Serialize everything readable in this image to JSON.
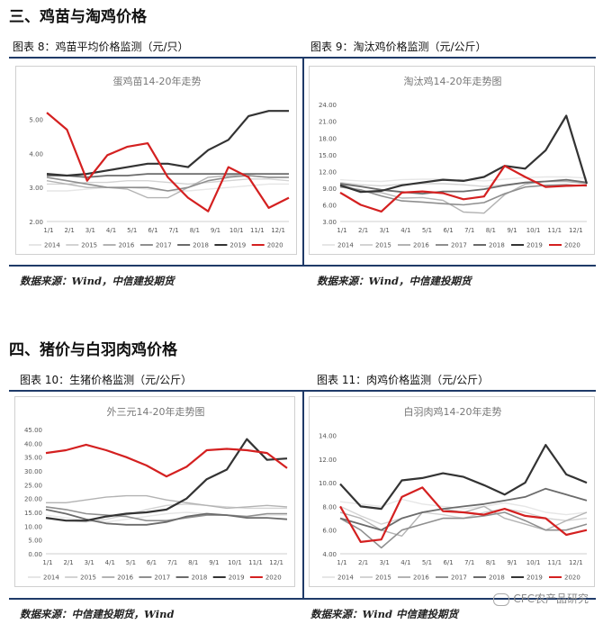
{
  "sections": {
    "s3": "三、鸡苗与淘鸡价格",
    "s4": "四、猪价与白羽肉鸡价格"
  },
  "figures": {
    "f8": {
      "label": "图表 8：鸡苗平均价格监测（元/只）",
      "source": "数据来源：Wind，中信建投期货"
    },
    "f9": {
      "label": "图表 9：淘汰鸡价格监测（元/公斤）",
      "source": "数据来源：Wind，中信建投期货"
    },
    "f10": {
      "label": "图表 10：生猪价格监测（元/公斤）",
      "source": "数据来源：中信建投期货，Wind"
    },
    "f11": {
      "label": "图表 11：肉鸡价格监测（元/公斤）",
      "source": "数据来源：Wind 中信建投期货"
    }
  },
  "watermark": "CFC农产品研究",
  "legend_names": [
    "2014",
    "2015",
    "2016",
    "2017",
    "2018",
    "2019",
    "2020"
  ],
  "series_colors": [
    "#e6e6e6",
    "#d3d3d3",
    "#b3b3b3",
    "#8f8f8f",
    "#6b6b6b",
    "#333333",
    "#d42020"
  ],
  "chart_data": [
    {
      "type": "line",
      "title": "蛋鸡苗14-20年走势",
      "x_ticks": [
        "1/1",
        "2/1",
        "3/1",
        "4/1",
        "5/1",
        "6/1",
        "7/1",
        "8/1",
        "9/1",
        "10/1",
        "11/1",
        "12/1"
      ],
      "y_ticks": [
        "2.00",
        "3.00",
        "4.00",
        "5.00"
      ],
      "ylim": [
        2,
        5.6
      ],
      "grid": false,
      "legend_position": "bottom",
      "series": [
        {
          "name": "2014",
          "values": [
            2.9,
            2.9,
            2.95,
            3.0,
            3.0,
            2.95,
            2.9,
            2.9,
            2.95,
            3.0,
            3.05,
            3.1,
            3.1
          ]
        },
        {
          "name": "2015",
          "values": [
            3.1,
            3.1,
            3.15,
            3.15,
            3.2,
            3.2,
            3.15,
            3.1,
            3.15,
            3.2,
            3.25,
            3.25,
            3.2
          ]
        },
        {
          "name": "2016",
          "values": [
            3.2,
            3.1,
            3.0,
            3.0,
            2.95,
            2.7,
            2.7,
            3.0,
            3.3,
            3.35,
            3.35,
            3.3,
            3.3
          ]
        },
        {
          "name": "2017",
          "values": [
            3.3,
            3.2,
            3.1,
            3.0,
            3.0,
            3.0,
            2.9,
            3.0,
            3.2,
            3.3,
            3.35,
            3.3,
            3.3
          ]
        },
        {
          "name": "2018",
          "values": [
            3.35,
            3.35,
            3.3,
            3.35,
            3.35,
            3.4,
            3.4,
            3.4,
            3.4,
            3.4,
            3.4,
            3.4,
            3.4
          ]
        },
        {
          "name": "2019",
          "values": [
            3.4,
            3.35,
            3.4,
            3.5,
            3.6,
            3.7,
            3.7,
            3.6,
            4.1,
            4.4,
            5.1,
            5.25,
            5.25
          ]
        },
        {
          "name": "2020",
          "values": [
            5.2,
            4.7,
            3.2,
            3.95,
            4.2,
            4.3,
            3.3,
            2.7,
            2.3,
            3.6,
            3.3,
            2.4,
            2.7
          ]
        }
      ]
    },
    {
      "type": "line",
      "title": "淘汰鸡14-20年走势图",
      "x_ticks": [
        "1/1",
        "2/1",
        "3/1",
        "4/1",
        "5/1",
        "6/1",
        "7/1",
        "8/1",
        "9/1",
        "10/1",
        "11/1",
        "12/1"
      ],
      "y_ticks": [
        "3.00",
        "6.00",
        "9.00",
        "12.00",
        "15.00",
        "18.00",
        "21.00",
        "24.00"
      ],
      "ylim": [
        3,
        25
      ],
      "grid": false,
      "legend_position": "bottom",
      "series": [
        {
          "name": "2014",
          "values": [
            10.5,
            10.3,
            10.2,
            10.5,
            10.6,
            10.6,
            10.5,
            10.3,
            10.6,
            10.9,
            11.0,
            11.0,
            10.8
          ]
        },
        {
          "name": "2015",
          "values": [
            10.0,
            9.6,
            9.4,
            9.7,
            9.8,
            9.8,
            9.6,
            9.3,
            9.6,
            10.0,
            10.2,
            10.2,
            10.0
          ]
        },
        {
          "name": "2016",
          "values": [
            9.7,
            8.5,
            8.2,
            7.2,
            7.3,
            6.8,
            4.7,
            4.5,
            7.8,
            9.7,
            10.2,
            10.2,
            9.8
          ]
        },
        {
          "name": "2017",
          "values": [
            9.2,
            8.7,
            7.6,
            6.7,
            6.5,
            6.2,
            6.0,
            6.4,
            8.0,
            9.2,
            9.5,
            9.6,
            9.4
          ]
        },
        {
          "name": "2018",
          "values": [
            9.8,
            9.3,
            8.7,
            8.3,
            8.0,
            8.4,
            8.4,
            8.8,
            9.5,
            10.0,
            10.2,
            10.5,
            10.0
          ]
        },
        {
          "name": "2019",
          "values": [
            9.5,
            8.3,
            8.5,
            9.5,
            10.0,
            10.5,
            10.3,
            11.0,
            13.0,
            12.5,
            15.8,
            22.0,
            9.8
          ]
        },
        {
          "name": "2020",
          "values": [
            8.2,
            6.0,
            4.8,
            8.2,
            8.4,
            8.1,
            7.0,
            7.5,
            13.0,
            11.0,
            9.2,
            9.4,
            9.5
          ]
        }
      ]
    },
    {
      "type": "line",
      "title": "外三元14-20年走势图",
      "x_ticks": [
        "1/1",
        "2/1",
        "3/1",
        "4/1",
        "5/1",
        "6/1",
        "7/1",
        "8/1",
        "9/1",
        "10/1",
        "11/1",
        "12/1"
      ],
      "y_ticks": [
        "0.00",
        "5.00",
        "10.00",
        "15.00",
        "20.00",
        "25.00",
        "30.00",
        "35.00",
        "40.00",
        "45.00"
      ],
      "ylim": [
        0,
        45
      ],
      "grid": false,
      "legend_position": "bottom",
      "series": [
        {
          "name": "2014",
          "values": [
            14.0,
            13.0,
            12.0,
            11.5,
            12.5,
            13.5,
            14.5,
            15.0,
            14.5,
            14.0,
            13.5,
            14.0,
            14.0
          ]
        },
        {
          "name": "2015",
          "values": [
            13.0,
            12.0,
            11.5,
            12.5,
            14.0,
            16.0,
            17.5,
            18.0,
            17.5,
            17.0,
            16.5,
            16.5,
            16.5
          ]
        },
        {
          "name": "2016",
          "values": [
            18.5,
            18.5,
            19.5,
            20.5,
            21.0,
            21.0,
            19.5,
            18.5,
            17.5,
            16.5,
            17.0,
            17.5,
            17.0
          ]
        },
        {
          "name": "2017",
          "values": [
            17.0,
            16.0,
            14.5,
            14.0,
            13.5,
            12.0,
            12.0,
            13.0,
            14.0,
            14.0,
            13.5,
            14.5,
            14.5
          ]
        },
        {
          "name": "2018",
          "values": [
            16.0,
            14.5,
            12.5,
            11.0,
            10.5,
            10.5,
            11.5,
            13.5,
            14.5,
            14.0,
            13.0,
            13.0,
            12.5
          ]
        },
        {
          "name": "2019",
          "values": [
            13.0,
            12.0,
            12.0,
            13.5,
            14.5,
            15.0,
            16.0,
            20.0,
            27.0,
            30.5,
            41.5,
            34.0,
            34.5
          ]
        },
        {
          "name": "2020",
          "values": [
            36.5,
            37.5,
            39.5,
            37.5,
            35.0,
            32.0,
            28.0,
            31.5,
            37.5,
            38.0,
            37.5,
            36.5,
            31.0
          ]
        }
      ]
    },
    {
      "type": "line",
      "title": "白羽肉鸡14-20年走势",
      "x_ticks": [
        "1/1",
        "2/1",
        "3/1",
        "4/1",
        "5/1",
        "6/1",
        "7/1",
        "8/1",
        "9/1",
        "10/1",
        "11/1",
        "12/1"
      ],
      "y_ticks": [
        "4.00",
        "6.00",
        "8.00",
        "10.00",
        "12.00",
        "14.00"
      ],
      "ylim": [
        4,
        14.5
      ],
      "grid": false,
      "legend_position": "bottom",
      "series": [
        {
          "name": "2014",
          "values": [
            8.4,
            8.2,
            8.0,
            8.6,
            8.2,
            8.0,
            7.8,
            8.0,
            8.3,
            8.0,
            7.5,
            7.3,
            7.5
          ]
        },
        {
          "name": "2015",
          "values": [
            8.0,
            7.2,
            6.5,
            7.0,
            7.5,
            7.3,
            7.0,
            7.5,
            7.8,
            7.5,
            7.0,
            6.8,
            7.0
          ]
        },
        {
          "name": "2016",
          "values": [
            7.5,
            7.0,
            6.0,
            5.5,
            7.5,
            7.8,
            7.5,
            8.0,
            7.0,
            6.5,
            6.0,
            6.8,
            7.5
          ]
        },
        {
          "name": "2017",
          "values": [
            7.0,
            6.0,
            4.5,
            6.0,
            6.5,
            7.0,
            7.0,
            7.2,
            7.5,
            6.8,
            6.0,
            6.0,
            6.5
          ]
        },
        {
          "name": "2018",
          "values": [
            7.0,
            6.5,
            6.0,
            7.0,
            7.5,
            7.8,
            8.0,
            8.2,
            8.5,
            8.8,
            9.5,
            9.0,
            8.5
          ]
        },
        {
          "name": "2019",
          "values": [
            9.9,
            8.0,
            7.8,
            10.2,
            10.4,
            10.8,
            10.5,
            9.8,
            9.0,
            10.0,
            13.2,
            10.7,
            10.0
          ]
        },
        {
          "name": "2020",
          "values": [
            8.0,
            5.0,
            5.2,
            8.8,
            9.6,
            7.6,
            7.5,
            7.3,
            7.8,
            7.2,
            7.0,
            5.6,
            6.0
          ]
        }
      ]
    }
  ]
}
